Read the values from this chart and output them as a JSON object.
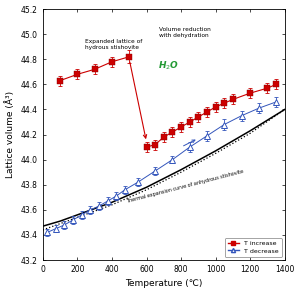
{
  "xlabel": "Temperature (℃)",
  "ylabel": "Lattice volume (Å³)",
  "xlim": [
    0,
    1400
  ],
  "ylim": [
    43.2,
    45.2
  ],
  "yticks": [
    43.2,
    43.4,
    43.6,
    43.8,
    44.0,
    44.2,
    44.4,
    44.6,
    44.8,
    45.0,
    45.2
  ],
  "xticks": [
    0,
    200,
    400,
    600,
    800,
    1000,
    1200,
    1400
  ],
  "red_x": [
    100,
    200,
    300,
    400,
    500,
    600,
    650,
    700,
    750,
    800,
    850,
    900,
    950,
    1000,
    1050,
    1100,
    1200,
    1300,
    1350
  ],
  "red_y": [
    44.63,
    44.68,
    44.72,
    44.78,
    44.82,
    44.1,
    44.12,
    44.18,
    44.22,
    44.26,
    44.3,
    44.34,
    44.38,
    44.42,
    44.45,
    44.48,
    44.53,
    44.57,
    44.6
  ],
  "red_yerr": [
    0.04,
    0.04,
    0.04,
    0.04,
    0.05,
    0.04,
    0.04,
    0.04,
    0.04,
    0.04,
    0.04,
    0.04,
    0.04,
    0.04,
    0.04,
    0.04,
    0.04,
    0.04,
    0.04
  ],
  "blue_x": [
    25,
    75,
    125,
    175,
    225,
    275,
    325,
    375,
    425,
    475,
    550,
    650,
    750,
    850,
    950,
    1050,
    1150,
    1250,
    1350
  ],
  "blue_y": [
    43.42,
    43.45,
    43.48,
    43.52,
    43.56,
    43.6,
    43.63,
    43.67,
    43.71,
    43.76,
    43.82,
    43.91,
    44.0,
    44.1,
    44.19,
    44.28,
    44.35,
    44.41,
    44.46
  ],
  "blue_yerr": [
    0.03,
    0.03,
    0.03,
    0.03,
    0.03,
    0.03,
    0.03,
    0.03,
    0.03,
    0.03,
    0.03,
    0.03,
    0.03,
    0.04,
    0.04,
    0.04,
    0.04,
    0.04,
    0.04
  ],
  "thermal_x": [
    0,
    100,
    200,
    400,
    600,
    800,
    1000,
    1200,
    1400
  ],
  "thermal_y": [
    43.47,
    43.51,
    43.56,
    43.66,
    43.78,
    43.92,
    44.07,
    44.23,
    44.4
  ],
  "dotted_x": [
    0,
    200,
    400,
    600,
    800,
    1000,
    1200,
    1400
  ],
  "dotted_y": [
    43.44,
    43.54,
    43.64,
    43.76,
    43.9,
    44.05,
    44.21,
    44.4
  ],
  "red_color": "#CC0000",
  "blue_color": "#3355BB",
  "legend_increase": "T increase",
  "legend_decrease": "T decrease"
}
